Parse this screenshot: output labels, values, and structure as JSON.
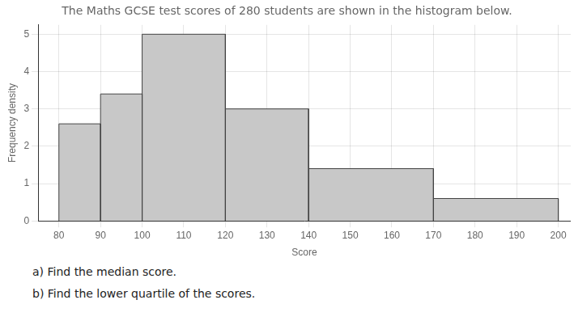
{
  "chart_data": {
    "type": "histogram",
    "title": "The Maths GCSE test scores of 280 students are shown in the histogram below.",
    "xlabel": "Score",
    "ylabel": "Frequency density",
    "bins": [
      80,
      90,
      100,
      120,
      140,
      170,
      200
    ],
    "values": [
      2.6,
      3.4,
      5.0,
      3.0,
      1.4,
      0.6
    ],
    "color": "#c8c8c8",
    "xlim": [
      75,
      203
    ],
    "ylim": [
      0,
      5.25
    ],
    "xticks": [
      80,
      90,
      100,
      110,
      120,
      130,
      140,
      150,
      160,
      170,
      180,
      190,
      200
    ],
    "yticks": [
      0,
      1,
      2,
      3,
      4,
      5
    ],
    "grid": true,
    "annotations": [
      "a) Find the median score.",
      "b) Find the lower quartile of the scores."
    ]
  }
}
